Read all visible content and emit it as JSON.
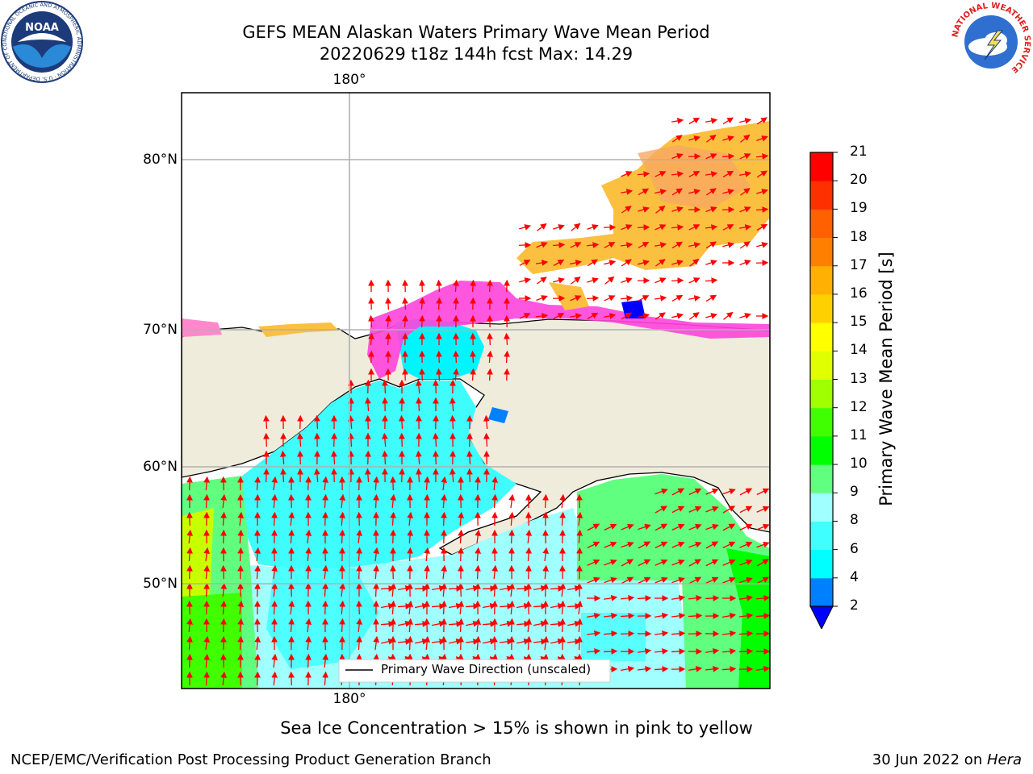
{
  "title": {
    "line1": "GEFS MEAN Alaskan Waters Primary Wave Mean Period",
    "line2": "20220629 t18z 144h fcst   Max: 14.29"
  },
  "map": {
    "lon_labels": {
      "top": "180°",
      "bottom": "180°"
    },
    "lat_labels": [
      "80°N",
      "70°N",
      "60°N",
      "50°N"
    ],
    "legend_label": "Primary Wave Direction (unscaled)",
    "land_color": "#efecdc",
    "arrow_color": "#ff0000"
  },
  "colorbar": {
    "title": "Primary Wave Mean Period [s]",
    "ticks": [
      "2",
      "4",
      "6",
      "8",
      "9",
      "10",
      "11",
      "12",
      "13",
      "14",
      "15",
      "16",
      "17",
      "18",
      "19",
      "20",
      "21"
    ],
    "colors": [
      "#0000ff",
      "#0080ff",
      "#00ffff",
      "#40ffff",
      "#a0ffff",
      "#60ff80",
      "#00ff00",
      "#40ff00",
      "#a0ff00",
      "#e0ff00",
      "#ffff00",
      "#ffd000",
      "#ffb000",
      "#ff8000",
      "#ff6000",
      "#ff3000",
      "#ff0000"
    ]
  },
  "note": "Sea Ice Concentration > 15% is shown in pink to yellow",
  "footer": {
    "left": "NCEP/EMC/Verification Post Processing Product Generation Branch",
    "right_prefix": "30 Jun 2022 on ",
    "right_machine": "Hera"
  },
  "logos": {
    "noaa": "NOAA",
    "noaa_ring": "NATIONAL OCEANIC AND ATMOSPHERIC ADMINISTRATION · U.S. DEPARTMENT OF COMMERCE",
    "nws_ring": "NATIONAL WEATHER SERVICE"
  }
}
